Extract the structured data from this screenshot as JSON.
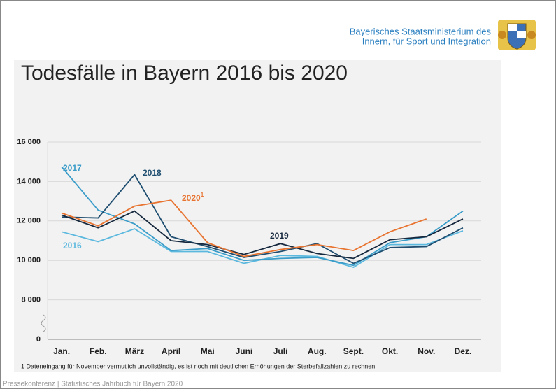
{
  "header": {
    "ministry_line1": "Bayerisches Staatsministerium des",
    "ministry_line2": "Innern, für Sport und Integration"
  },
  "footer": "Pressekonferenz | Statistisches Jahrbuch für Bayern 2020",
  "chart_data": {
    "type": "line",
    "title": "Todesfälle in Bayern 2016 bis 2020",
    "categories": [
      "Jan.",
      "Feb.",
      "März",
      "April",
      "Mai",
      "Juni",
      "Juli",
      "Aug.",
      "Sept.",
      "Okt.",
      "Nov.",
      "Dez."
    ],
    "ylim": [
      0,
      16000
    ],
    "axis_break": [
      0,
      6000
    ],
    "yticks": [
      0,
      {
        "value": 8000,
        "label": "8 000"
      },
      {
        "value": 10000,
        "label": "10 000"
      },
      {
        "value": 12000,
        "label": "12 000"
      },
      {
        "value": 14000,
        "label": "14 000"
      },
      {
        "value": 16000,
        "label": "16 000"
      }
    ],
    "grid": true,
    "series": [
      {
        "name": "2016",
        "color": "#5bb8de",
        "values": [
          11450,
          10950,
          11600,
          10450,
          10450,
          9850,
          10250,
          10200,
          9650,
          10800,
          10800,
          11500
        ]
      },
      {
        "name": "2017",
        "color": "#3a9cc8",
        "values": [
          14750,
          12550,
          11850,
          10500,
          10600,
          10000,
          10100,
          10150,
          9750,
          10900,
          11200,
          12500
        ]
      },
      {
        "name": "2018",
        "color": "#1f4e70",
        "values": [
          12200,
          12150,
          14350,
          11200,
          10700,
          10150,
          10450,
          10850,
          9850,
          10650,
          10700,
          11650
        ]
      },
      {
        "name": "2019",
        "color": "#16283d",
        "values": [
          12300,
          11650,
          12500,
          11000,
          10800,
          10300,
          10850,
          10350,
          10100,
          11050,
          11200,
          12100
        ]
      },
      {
        "name": "2020",
        "note_marker": "1",
        "color": "#e8732f",
        "values": [
          12400,
          11750,
          12750,
          13050,
          10900,
          10200,
          10550,
          10800,
          10500,
          11450,
          12100,
          null
        ]
      }
    ],
    "footnote": "1 Dateneingang für November vermutlich unvollständig, es ist noch mit deutlichen Erhöhungen der Sterbefallzahlen zu rechnen."
  }
}
